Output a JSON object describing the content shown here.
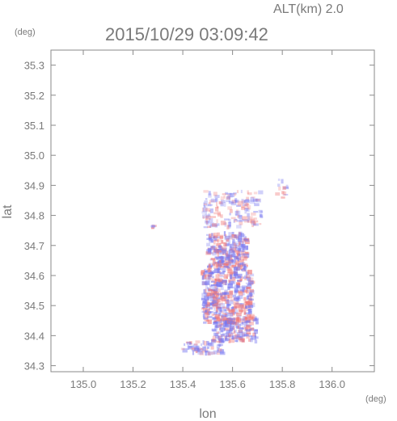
{
  "header": {
    "altitude_label": "ALT(km) 2.0",
    "timestamp": "2015/10/29 03:09:42"
  },
  "chart_data": {
    "type": "heatmap",
    "title": "2015/10/29 03:09:42",
    "xlabel": "lon",
    "ylabel": "lat",
    "x_unit": "(deg)",
    "y_unit": "(deg)",
    "xlim": [
      134.87,
      136.17
    ],
    "ylim": [
      34.28,
      35.35
    ],
    "x_ticks": [
      135.0,
      135.2,
      135.4,
      135.6,
      135.8,
      136.0
    ],
    "x_tick_labels": [
      "135.0",
      "135.2",
      "135.4",
      "135.6",
      "135.8",
      "136.0"
    ],
    "y_ticks": [
      34.3,
      34.4,
      34.5,
      34.6,
      34.7,
      34.8,
      34.9,
      35.0,
      35.1,
      35.2,
      35.3
    ],
    "y_tick_labels": [
      "34.3",
      "34.4",
      "34.5",
      "34.6",
      "34.7",
      "34.8",
      "34.9",
      "35.0",
      "35.1",
      "35.2",
      "35.3"
    ],
    "grid": false,
    "colors": {
      "positive": "#f07a7a",
      "negative": "#7878f0",
      "axis": "#8a8a8a",
      "text": "#7a7a7a"
    },
    "clusters": [
      {
        "lon": [
          135.48,
          135.72
        ],
        "lat": [
          34.76,
          34.88
        ],
        "density": 0.35,
        "n": 160
      },
      {
        "lon": [
          135.5,
          135.66
        ],
        "lat": [
          34.62,
          34.74
        ],
        "density": 0.7,
        "n": 260
      },
      {
        "lon": [
          135.48,
          135.68
        ],
        "lat": [
          34.44,
          34.62
        ],
        "density": 0.75,
        "n": 420
      },
      {
        "lon": [
          135.52,
          135.7
        ],
        "lat": [
          34.38,
          34.46
        ],
        "density": 0.6,
        "n": 180
      },
      {
        "lon": [
          135.4,
          135.56
        ],
        "lat": [
          34.34,
          34.38
        ],
        "density": 0.5,
        "n": 60
      },
      {
        "lon": [
          135.78,
          135.82
        ],
        "lat": [
          34.85,
          34.92
        ],
        "density": 0.4,
        "n": 12
      },
      {
        "lon": [
          135.27,
          135.29
        ],
        "lat": [
          34.75,
          34.77
        ],
        "density": 0.6,
        "n": 4
      }
    ]
  }
}
